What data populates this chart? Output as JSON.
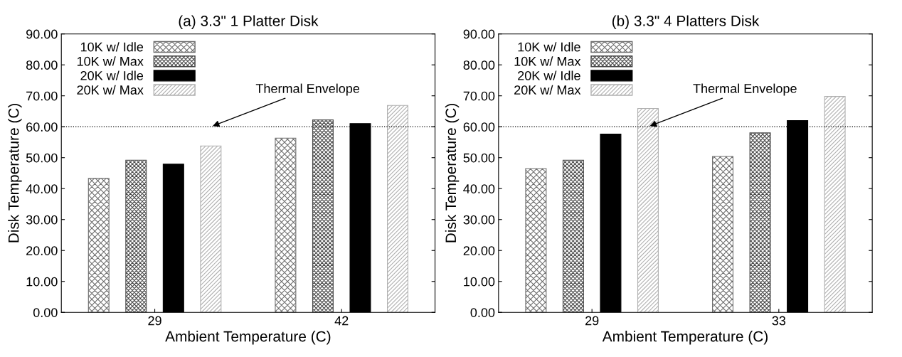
{
  "chart_data": [
    {
      "type": "bar",
      "title": "(a) 3.3\" 1 Platter Disk",
      "xlabel": "Ambient Temperature (C)",
      "ylabel": "Disk Temperature (C)",
      "categories": [
        "29",
        "42"
      ],
      "series": [
        {
          "name": "10K w/ Idle",
          "color": "#6e6e6e",
          "values": [
            43.3,
            56.3
          ]
        },
        {
          "name": "10K w/ Max",
          "color": "#4a4a4a",
          "values": [
            49.2,
            62.2
          ]
        },
        {
          "name": "20K w/ Idle",
          "color": "#000000",
          "values": [
            47.9,
            61.0
          ]
        },
        {
          "name": "20K w/ Max",
          "color": "#b0b0b0",
          "values": [
            53.8,
            66.9
          ]
        }
      ],
      "ylim": [
        0,
        90
      ],
      "yticks": [
        {
          "value": 0,
          "label": "0.00"
        },
        {
          "value": 10,
          "label": "10.00"
        },
        {
          "value": 20,
          "label": "20.00"
        },
        {
          "value": 30,
          "label": "30.00"
        },
        {
          "value": 40,
          "label": "40.00"
        },
        {
          "value": 50,
          "label": "50.00"
        },
        {
          "value": 60,
          "label": "60.00"
        },
        {
          "value": 70,
          "label": "70.00"
        },
        {
          "value": 80,
          "label": "80.00"
        },
        {
          "value": 90,
          "label": "90.00"
        }
      ],
      "ref_lines": [
        {
          "axis": "y",
          "value": 60,
          "label": "Thermal Envelope",
          "color": "#000000",
          "line_style": "dotted"
        }
      ],
      "legend": "top left",
      "grid": false
    },
    {
      "type": "bar",
      "title": "(b) 3.3\" 4 Platters Disk",
      "xlabel": "Ambient Temperature (C)",
      "ylabel": "Disk Temperature (C)",
      "categories": [
        "29",
        "33"
      ],
      "series": [
        {
          "name": "10K w/ Idle",
          "color": "#6e6e6e",
          "values": [
            46.5,
            50.4
          ]
        },
        {
          "name": "10K w/ Max",
          "color": "#4a4a4a",
          "values": [
            49.2,
            58.0
          ]
        },
        {
          "name": "20K w/ Idle",
          "color": "#000000",
          "values": [
            57.6,
            62.0
          ]
        },
        {
          "name": "20K w/ Max",
          "color": "#b0b0b0",
          "values": [
            65.9,
            69.8
          ]
        }
      ],
      "ylim": [
        0,
        90
      ],
      "yticks": [
        {
          "value": 0,
          "label": "0.00"
        },
        {
          "value": 10,
          "label": "10.00"
        },
        {
          "value": 20,
          "label": "20.00"
        },
        {
          "value": 30,
          "label": "30.00"
        },
        {
          "value": 40,
          "label": "40.00"
        },
        {
          "value": 50,
          "label": "50.00"
        },
        {
          "value": 60,
          "label": "60.00"
        },
        {
          "value": 70,
          "label": "70.00"
        },
        {
          "value": 80,
          "label": "80.00"
        },
        {
          "value": 90,
          "label": "90.00"
        }
      ],
      "ref_lines": [
        {
          "axis": "y",
          "value": 60,
          "label": "Thermal Envelope",
          "color": "#000000",
          "line_style": "dotted"
        }
      ],
      "legend": "top left",
      "grid": false
    }
  ]
}
